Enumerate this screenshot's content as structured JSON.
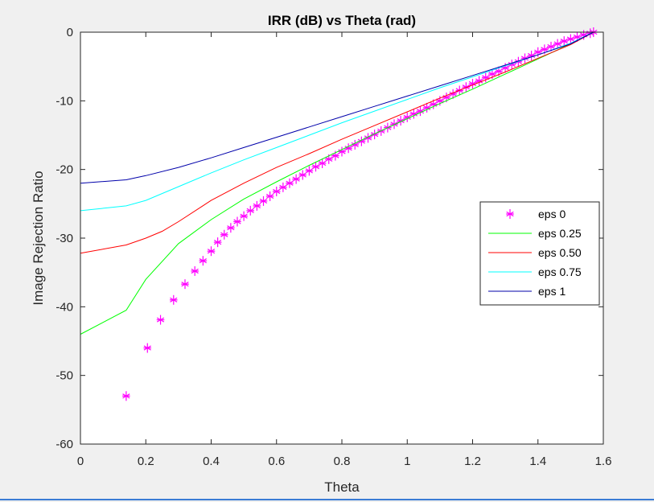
{
  "chart_data": {
    "type": "line",
    "title": "IRR (dB)  vs  Theta (rad)",
    "xlabel": "Theta",
    "ylabel": "Image Rejection Ratio",
    "xlim": [
      0,
      1.6
    ],
    "ylim": [
      -60,
      0
    ],
    "xticks": [
      "0",
      "0.2",
      "0.4",
      "0.6",
      "0.8",
      "1",
      "1.2",
      "1.4",
      "1.6"
    ],
    "yticks": [
      "0",
      "-10",
      "-20",
      "-30",
      "-40",
      "-50",
      "-60"
    ],
    "xtick_values": [
      0,
      0.2,
      0.4,
      0.6,
      0.8,
      1.0,
      1.2,
      1.4,
      1.6
    ],
    "ytick_values": [
      0,
      -10,
      -20,
      -30,
      -40,
      -50,
      -60
    ],
    "grid": false,
    "legend_position": "right",
    "series": [
      {
        "name": "eps 0",
        "color": "#ff00ff",
        "style": "marker-asterisk",
        "x": [
          0.14,
          0.205,
          0.245,
          0.285,
          0.32,
          0.35,
          0.375,
          0.4,
          0.42,
          0.44,
          0.46,
          0.48,
          0.5,
          0.52,
          0.54,
          0.56,
          0.58,
          0.6,
          0.62,
          0.64,
          0.66,
          0.68,
          0.7,
          0.72,
          0.74,
          0.76,
          0.78,
          0.8,
          0.82,
          0.84,
          0.86,
          0.88,
          0.9,
          0.92,
          0.94,
          0.96,
          0.98,
          1.0,
          1.02,
          1.04,
          1.06,
          1.08,
          1.1,
          1.12,
          1.14,
          1.16,
          1.18,
          1.2,
          1.22,
          1.24,
          1.26,
          1.28,
          1.3,
          1.32,
          1.34,
          1.36,
          1.38,
          1.4,
          1.42,
          1.44,
          1.46,
          1.48,
          1.5,
          1.52,
          1.54,
          1.56,
          1.57
        ],
        "y": [
          -53,
          -46,
          -41.9,
          -39,
          -36.7,
          -34.8,
          -33.3,
          -31.9,
          -30.6,
          -29.5,
          -28.5,
          -27.6,
          -26.8,
          -26,
          -25.3,
          -24.6,
          -23.9,
          -23.2,
          -22.6,
          -22,
          -21.4,
          -20.8,
          -20.2,
          -19.6,
          -19.1,
          -18.5,
          -18,
          -17.4,
          -16.9,
          -16.4,
          -15.9,
          -15.4,
          -14.9,
          -14.4,
          -13.9,
          -13.4,
          -12.9,
          -12.4,
          -11.9,
          -11.5,
          -11,
          -10.5,
          -10,
          -9.5,
          -9,
          -8.5,
          -8,
          -7.5,
          -7.1,
          -6.6,
          -6.1,
          -5.7,
          -5.2,
          -4.7,
          -4.3,
          -3.8,
          -3.4,
          -2.9,
          -2.5,
          -2.1,
          -1.7,
          -1.3,
          -1,
          -0.7,
          -0.4,
          -0.15,
          0
        ]
      },
      {
        "name": "eps 0.25",
        "color": "#00ff00",
        "style": "line",
        "x": [
          0,
          0.14,
          0.2,
          0.3,
          0.4,
          0.5,
          0.6,
          0.7,
          0.8,
          0.9,
          1.0,
          1.1,
          1.2,
          1.3,
          1.4,
          1.5,
          1.57
        ],
        "y": [
          -44,
          -40.5,
          -36,
          -30.8,
          -27.3,
          -24.3,
          -21.8,
          -19.4,
          -17.1,
          -14.8,
          -12.6,
          -10.4,
          -8.3,
          -6.1,
          -3.9,
          -1.7,
          0
        ]
      },
      {
        "name": "eps 0.50",
        "color": "#ff0000",
        "style": "line",
        "x": [
          0,
          0.14,
          0.2,
          0.25,
          0.3,
          0.4,
          0.5,
          0.6,
          0.7,
          0.8,
          0.9,
          1.0,
          1.1,
          1.2,
          1.3,
          1.4,
          1.5,
          1.57
        ],
        "y": [
          -32.2,
          -31,
          -30,
          -29,
          -27.6,
          -24.5,
          -22,
          -19.7,
          -17.7,
          -15.6,
          -13.6,
          -11.6,
          -9.6,
          -7.7,
          -5.8,
          -3.8,
          -1.8,
          0
        ]
      },
      {
        "name": "eps 0.75",
        "color": "#00ffff",
        "style": "line",
        "x": [
          0,
          0.14,
          0.2,
          0.3,
          0.4,
          0.5,
          0.6,
          0.7,
          0.8,
          0.9,
          1.0,
          1.1,
          1.2,
          1.3,
          1.4,
          1.5,
          1.57
        ],
        "y": [
          -26,
          -25.3,
          -24.5,
          -22.5,
          -20.5,
          -18.6,
          -16.8,
          -15,
          -13.2,
          -11.5,
          -9.8,
          -8.1,
          -6.5,
          -4.9,
          -3.3,
          -1.6,
          0
        ]
      },
      {
        "name": "eps 1",
        "color": "#0000aa",
        "style": "line",
        "x": [
          0,
          0.14,
          0.2,
          0.3,
          0.4,
          0.5,
          0.6,
          0.7,
          0.8,
          0.9,
          1.0,
          1.1,
          1.2,
          1.3,
          1.4,
          1.5,
          1.57
        ],
        "y": [
          -22,
          -21.5,
          -20.9,
          -19.7,
          -18.3,
          -16.8,
          -15.3,
          -13.8,
          -12.3,
          -10.8,
          -9.3,
          -7.8,
          -6.3,
          -4.8,
          -3.3,
          -1.7,
          0
        ]
      }
    ]
  }
}
